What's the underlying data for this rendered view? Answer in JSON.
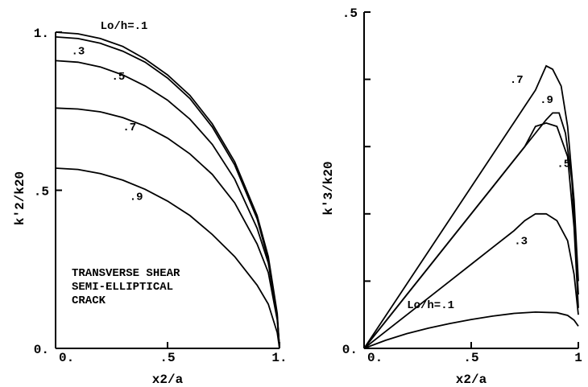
{
  "chart_data": [
    {
      "type": "line",
      "xlabel": "x2/a",
      "ylabel": "k'2/k20",
      "xlim": [
        0,
        1
      ],
      "ylim": [
        0,
        1
      ],
      "xticks": [
        {
          "v": 0,
          "label": "0."
        },
        {
          "v": 0.5,
          "label": ".5"
        },
        {
          "v": 1,
          "label": "1."
        }
      ],
      "yticks": [
        {
          "v": 0,
          "label": "0."
        },
        {
          "v": 0.5,
          "label": ".5"
        },
        {
          "v": 1,
          "label": "1."
        }
      ],
      "annotation": [
        "TRANSVERSE SHEAR",
        "SEMI-ELLIPTICAL",
        "CRACK"
      ],
      "series": [
        {
          "name": "Lo/h=.1",
          "label": "Lo/h=.1",
          "label_at": [
            0.2,
            1.01
          ],
          "x": [
            0,
            0.1,
            0.2,
            0.3,
            0.4,
            0.5,
            0.6,
            0.7,
            0.8,
            0.9,
            0.95,
            0.99,
            1.0
          ],
          "values": [
            1.0,
            0.995,
            0.98,
            0.955,
            0.915,
            0.865,
            0.8,
            0.71,
            0.59,
            0.42,
            0.29,
            0.11,
            0.0
          ]
        },
        {
          "name": ".3",
          "label": ".3",
          "label_at": [
            0.07,
            0.93
          ],
          "x": [
            0,
            0.1,
            0.2,
            0.3,
            0.4,
            0.5,
            0.6,
            0.7,
            0.8,
            0.9,
            0.95,
            0.99,
            1.0
          ],
          "values": [
            0.985,
            0.98,
            0.965,
            0.94,
            0.905,
            0.855,
            0.79,
            0.7,
            0.58,
            0.41,
            0.28,
            0.1,
            0.0
          ]
        },
        {
          "name": ".5",
          "label": ".5",
          "label_at": [
            0.25,
            0.85
          ],
          "x": [
            0,
            0.1,
            0.2,
            0.3,
            0.4,
            0.5,
            0.6,
            0.7,
            0.8,
            0.9,
            0.95,
            0.99,
            1.0
          ],
          "values": [
            0.91,
            0.905,
            0.89,
            0.865,
            0.83,
            0.785,
            0.725,
            0.645,
            0.535,
            0.38,
            0.27,
            0.1,
            0.0
          ]
        },
        {
          "name": ".7",
          "label": ".7",
          "label_at": [
            0.3,
            0.69
          ],
          "x": [
            0,
            0.1,
            0.2,
            0.3,
            0.4,
            0.5,
            0.6,
            0.7,
            0.8,
            0.9,
            0.95,
            0.99,
            1.0
          ],
          "values": [
            0.76,
            0.757,
            0.748,
            0.73,
            0.703,
            0.665,
            0.615,
            0.55,
            0.46,
            0.33,
            0.24,
            0.09,
            0.0
          ]
        },
        {
          "name": ".9",
          "label": ".9",
          "label_at": [
            0.33,
            0.47
          ],
          "x": [
            0,
            0.1,
            0.2,
            0.3,
            0.4,
            0.5,
            0.6,
            0.7,
            0.8,
            0.9,
            0.95,
            0.99,
            1.0
          ],
          "values": [
            0.57,
            0.566,
            0.553,
            0.532,
            0.503,
            0.466,
            0.42,
            0.36,
            0.29,
            0.2,
            0.14,
            0.05,
            0.0
          ]
        }
      ]
    },
    {
      "type": "line",
      "xlabel": "x2/a",
      "ylabel": "k'3/k20",
      "xlim": [
        0,
        1
      ],
      "ylim": [
        0,
        0.5
      ],
      "xticks": [
        {
          "v": 0,
          "label": "0."
        },
        {
          "v": 0.5,
          "label": ".5"
        },
        {
          "v": 1,
          "label": "1"
        }
      ],
      "yticks": [
        {
          "v": 0,
          "label": "0."
        },
        {
          "v": 0.5,
          "label": ".5"
        }
      ],
      "series": [
        {
          "name": ".7",
          "label": ".7",
          "label_at": [
            0.68,
            0.395
          ],
          "x": [
            0,
            0.1,
            0.2,
            0.3,
            0.4,
            0.5,
            0.6,
            0.7,
            0.75,
            0.8,
            0.85,
            0.88,
            0.92,
            0.95,
            0.98,
            1.0
          ],
          "values": [
            0,
            0.048,
            0.096,
            0.144,
            0.192,
            0.24,
            0.288,
            0.336,
            0.36,
            0.384,
            0.42,
            0.415,
            0.39,
            0.33,
            0.22,
            0.1
          ]
        },
        {
          "name": ".9",
          "label": ".9",
          "label_at": [
            0.82,
            0.365
          ],
          "x": [
            0,
            0.1,
            0.2,
            0.3,
            0.4,
            0.5,
            0.6,
            0.7,
            0.8,
            0.85,
            0.88,
            0.91,
            0.94,
            0.97,
            1.0
          ],
          "values": [
            0,
            0.04,
            0.08,
            0.12,
            0.16,
            0.2,
            0.24,
            0.28,
            0.32,
            0.34,
            0.35,
            0.35,
            0.32,
            0.25,
            0.08
          ]
        },
        {
          "name": ".5",
          "label": ".5",
          "label_at": [
            0.9,
            0.27
          ],
          "x": [
            0,
            0.1,
            0.2,
            0.3,
            0.4,
            0.5,
            0.6,
            0.7,
            0.75,
            0.8,
            0.85,
            0.9,
            0.95,
            0.98,
            1.0
          ],
          "values": [
            0,
            0.04,
            0.08,
            0.12,
            0.16,
            0.2,
            0.24,
            0.28,
            0.3,
            0.33,
            0.335,
            0.33,
            0.285,
            0.18,
            0.06
          ]
        },
        {
          "name": ".3",
          "label": ".3",
          "label_at": [
            0.7,
            0.155
          ],
          "x": [
            0,
            0.1,
            0.2,
            0.3,
            0.4,
            0.5,
            0.6,
            0.7,
            0.75,
            0.8,
            0.85,
            0.9,
            0.95,
            0.98,
            1.0
          ],
          "values": [
            0,
            0.025,
            0.05,
            0.075,
            0.1,
            0.125,
            0.15,
            0.175,
            0.19,
            0.2,
            0.2,
            0.19,
            0.16,
            0.11,
            0.05
          ]
        },
        {
          "name": "Lo/h=.1",
          "label": "Lo/h=.1",
          "label_at": [
            0.2,
            0.06
          ],
          "x": [
            0,
            0.1,
            0.2,
            0.3,
            0.4,
            0.5,
            0.6,
            0.7,
            0.8,
            0.9,
            0.95,
            0.98,
            1.0
          ],
          "values": [
            0,
            0.012,
            0.022,
            0.03,
            0.037,
            0.043,
            0.048,
            0.052,
            0.054,
            0.053,
            0.049,
            0.042,
            0.033
          ]
        }
      ]
    }
  ]
}
